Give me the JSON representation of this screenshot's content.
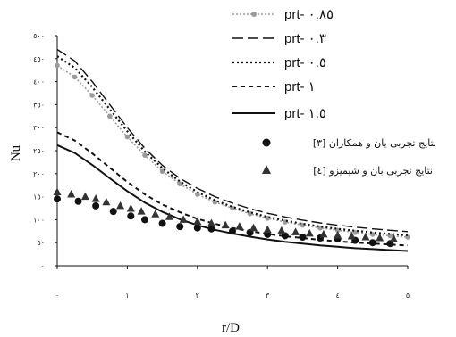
{
  "chart_data": {
    "type": "line",
    "xlabel": "r/D",
    "ylabel": "Nu",
    "xlim": [
      0,
      5
    ],
    "ylim": [
      0,
      500
    ],
    "xticks": [
      0,
      1,
      2,
      3,
      4,
      5
    ],
    "xtick_labels": [
      "٠",
      "١",
      "٢",
      "٣",
      "٤",
      "٥"
    ],
    "yticks": [
      0,
      50,
      100,
      150,
      200,
      250,
      300,
      350,
      400,
      450,
      500
    ],
    "ytick_labels": [
      "٠",
      "٥٠",
      "١٠٠",
      "١٥٠",
      "٢٠٠",
      "٢٥٠",
      "٣٠٠",
      "٣٥٠",
      "٤٠٠",
      "٤٥٠",
      "٥٠٠"
    ],
    "grid": false,
    "legend_position": "top-right",
    "series": [
      {
        "name": "prt- ٠.٨٥",
        "style": "dotted-markers",
        "color": "#9a9a9a",
        "x": [
          0,
          0.25,
          0.5,
          0.75,
          1,
          1.25,
          1.5,
          1.75,
          2,
          2.25,
          2.5,
          2.75,
          3,
          3.25,
          3.5,
          3.75,
          4,
          4.25,
          4.5,
          4.75,
          5
        ],
        "y": [
          435,
          410,
          370,
          325,
          280,
          240,
          205,
          178,
          155,
          138,
          125,
          113,
          103,
          95,
          88,
          82,
          77,
          72,
          68,
          65,
          62
        ]
      },
      {
        "name": "prt- ٠.٣",
        "style": "long-dash",
        "color": "#111111",
        "x": [
          0,
          0.25,
          0.5,
          0.75,
          1,
          1.25,
          1.5,
          1.75,
          2,
          2.25,
          2.5,
          2.75,
          3,
          3.25,
          3.5,
          3.75,
          4,
          4.25,
          4.5,
          4.75,
          5
        ],
        "y": [
          470,
          445,
          400,
          350,
          300,
          255,
          218,
          190,
          168,
          150,
          136,
          124,
          114,
          106,
          99,
          93,
          88,
          84,
          80,
          77,
          74
        ]
      },
      {
        "name": "prt- ٠.٥",
        "style": "dotted",
        "color": "#111111",
        "x": [
          0,
          0.25,
          0.5,
          0.75,
          1,
          1.25,
          1.5,
          1.75,
          2,
          2.25,
          2.5,
          2.75,
          3,
          3.25,
          3.5,
          3.75,
          4,
          4.25,
          4.5,
          4.75,
          5
        ],
        "y": [
          455,
          430,
          388,
          340,
          292,
          248,
          212,
          183,
          160,
          142,
          128,
          116,
          106,
          98,
          91,
          85,
          80,
          76,
          72,
          69,
          66
        ]
      },
      {
        "name": "prt- ١",
        "style": "dash",
        "color": "#111111",
        "x": [
          0,
          0.25,
          0.5,
          0.75,
          1,
          1.25,
          1.5,
          1.75,
          2,
          2.25,
          2.5,
          2.75,
          3,
          3.25,
          3.5,
          3.75,
          4,
          4.25,
          4.5,
          4.75,
          5
        ],
        "y": [
          290,
          272,
          244,
          213,
          182,
          155,
          133,
          116,
          102,
          91,
          82,
          75,
          69,
          64,
          60,
          56,
          53,
          50,
          48,
          46,
          44
        ]
      },
      {
        "name": "prt- ١.٥",
        "style": "solid",
        "color": "#111111",
        "x": [
          0,
          0.25,
          0.5,
          0.75,
          1,
          1.25,
          1.5,
          1.75,
          2,
          2.25,
          2.5,
          2.75,
          3,
          3.25,
          3.5,
          3.75,
          4,
          4.25,
          4.5,
          4.75,
          5
        ],
        "y": [
          262,
          245,
          219,
          190,
          162,
          137,
          117,
          101,
          88,
          78,
          70,
          63,
          57,
          52,
          48,
          44,
          41,
          38,
          36,
          34,
          32
        ]
      },
      {
        "name": "نتایج تجربی یان و همکاران [٣]",
        "style": "markers-circle",
        "color": "#111111",
        "x": [
          0,
          0.3,
          0.55,
          0.8,
          1.05,
          1.25,
          1.5,
          1.75,
          2,
          2.2,
          2.5,
          2.75,
          3,
          3.25,
          3.5,
          3.75,
          4,
          4.25,
          4.5,
          4.75
        ],
        "y": [
          145,
          140,
          130,
          118,
          108,
          100,
          92,
          85,
          82,
          80,
          75,
          72,
          68,
          65,
          62,
          60,
          58,
          55,
          50,
          48
        ]
      },
      {
        "name": "نتایج تجربی بان و شیمیزو [٤]",
        "style": "markers-triangle",
        "color": "#333333",
        "x": [
          0,
          0.2,
          0.4,
          0.55,
          0.7,
          0.9,
          1.05,
          1.2,
          1.4,
          1.6,
          1.8,
          2,
          2.2,
          2.4,
          2.6,
          2.8,
          3,
          3.2,
          3.4,
          3.6,
          3.8,
          4,
          4.2,
          4.4,
          4.6,
          4.8
        ],
        "y": [
          160,
          155,
          150,
          145,
          138,
          130,
          124,
          118,
          112,
          106,
          100,
          96,
          92,
          88,
          85,
          82,
          78,
          76,
          73,
          70,
          68,
          66,
          64,
          62,
          60,
          58
        ]
      }
    ]
  },
  "colors": {
    "axis": "#111111",
    "background": "#ffffff"
  }
}
